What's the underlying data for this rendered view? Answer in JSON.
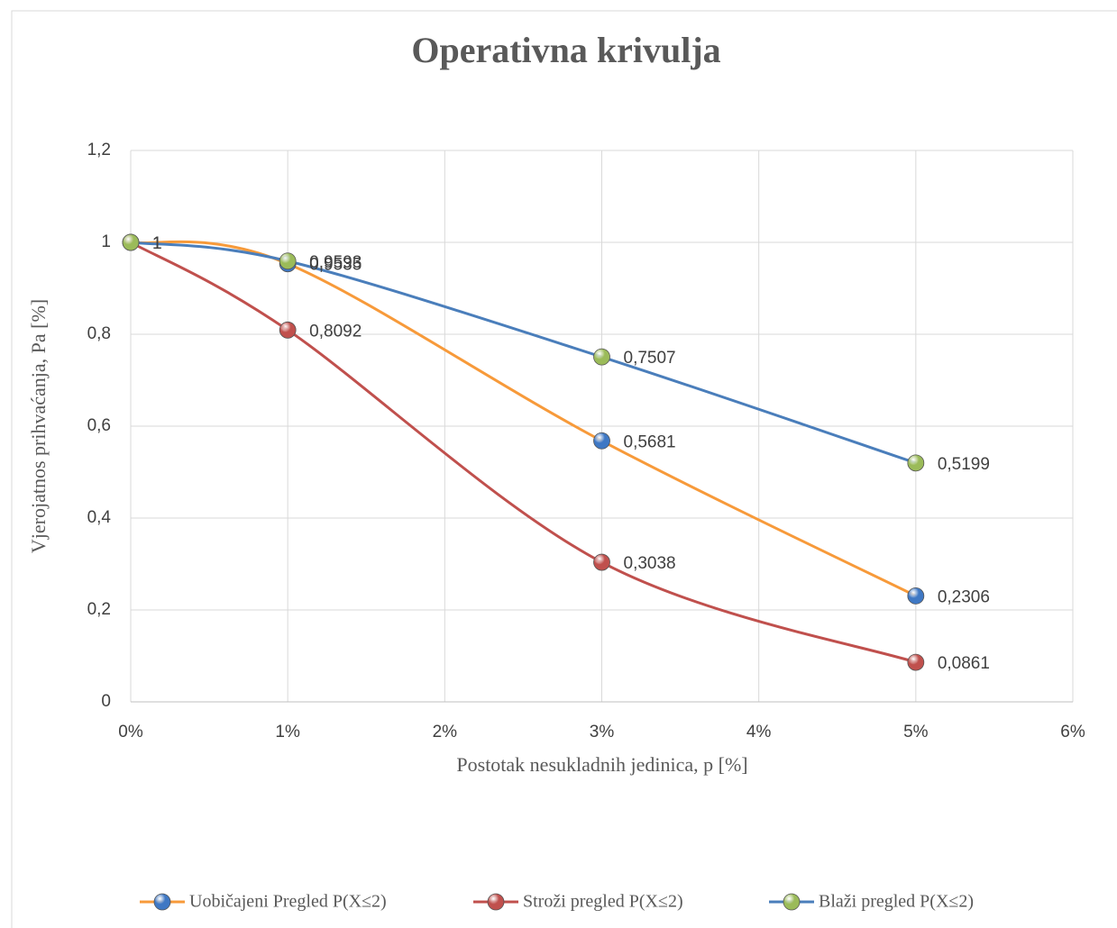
{
  "chart_data": {
    "type": "line",
    "title": "Operativna krivulja",
    "xlabel": "Postotak nesukladnih jedinica, p [%]",
    "ylabel": "Vjerojatnos prihvaćanja, Pa [%]",
    "x": [
      0,
      1,
      3,
      5
    ],
    "xlim": [
      0,
      6
    ],
    "xticks": [
      {
        "value": 0,
        "label": "0%"
      },
      {
        "value": 1,
        "label": "1%"
      },
      {
        "value": 2,
        "label": "2%"
      },
      {
        "value": 3,
        "label": "3%"
      },
      {
        "value": 4,
        "label": "4%"
      },
      {
        "value": 5,
        "label": "5%"
      },
      {
        "value": 6,
        "label": "6%"
      }
    ],
    "ylim": [
      0,
      1.2
    ],
    "yticks": [
      0,
      {
        "value": 0.2,
        "label": "0,2"
      },
      {
        "value": 0.4,
        "label": "0,4"
      },
      {
        "value": 0.6,
        "label": "0,6"
      },
      {
        "value": 0.8,
        "label": "0,8"
      },
      1,
      {
        "value": 1.2,
        "label": "1,2"
      }
    ],
    "grid": true,
    "smooth": true,
    "legend": "bottom",
    "series": [
      {
        "name": "Uobičajeni Pregled P(X≤2)",
        "color": "#f79a3a",
        "marker_color": "#3f78c4",
        "values": [
          1,
          0.9535,
          0.5681,
          0.2306
        ],
        "value_labels": [
          "1",
          "0,9535",
          "0,5681",
          "0,2306"
        ]
      },
      {
        "name": "Stroži pregled  P(X≤2)",
        "color": "#c0504d",
        "marker_color": "#c0504d",
        "values": [
          1,
          0.8092,
          0.3038,
          0.0861
        ],
        "value_labels": [
          "1",
          "0,8092",
          "0,3038",
          "0,0861"
        ]
      },
      {
        "name": "Blaži pregled P(X≤2)",
        "color": "#4a7ebb",
        "marker_color": "#9bbb59",
        "values": [
          1,
          0.9593,
          0.7507,
          0.5199
        ],
        "value_labels": [
          "1",
          "0,9593",
          "0,7507",
          "0,5199"
        ]
      }
    ]
  }
}
